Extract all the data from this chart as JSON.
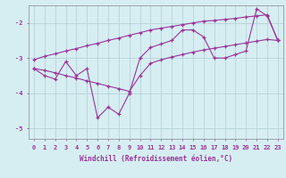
{
  "xlabel": "Windchill (Refroidissement éolien,°C)",
  "x_hours": [
    0,
    1,
    2,
    3,
    4,
    5,
    6,
    7,
    8,
    9,
    10,
    11,
    12,
    13,
    14,
    15,
    16,
    17,
    18,
    19,
    20,
    21,
    22,
    23
  ],
  "main_line": [
    -3.3,
    -3.5,
    -3.6,
    -3.1,
    -3.5,
    -3.3,
    -4.7,
    -4.4,
    -4.6,
    -4.0,
    -3.0,
    -2.7,
    -2.6,
    -2.5,
    -2.2,
    -2.2,
    -2.4,
    -3.0,
    -3.0,
    -2.9,
    -2.8,
    -1.6,
    -1.8,
    -2.5
  ],
  "upper_line": [
    -3.05,
    -2.95,
    -2.88,
    -2.8,
    -2.73,
    -2.65,
    -2.58,
    -2.5,
    -2.43,
    -2.35,
    -2.28,
    -2.2,
    -2.15,
    -2.1,
    -2.05,
    -2.0,
    -1.95,
    -1.93,
    -1.9,
    -1.87,
    -1.83,
    -1.8,
    -1.77,
    -2.5
  ],
  "lower_line": [
    -3.3,
    -3.35,
    -3.42,
    -3.5,
    -3.57,
    -3.65,
    -3.72,
    -3.8,
    -3.87,
    -3.95,
    -3.5,
    -3.15,
    -3.05,
    -2.97,
    -2.9,
    -2.83,
    -2.77,
    -2.72,
    -2.67,
    -2.62,
    -2.57,
    -2.52,
    -2.47,
    -2.5
  ],
  "line_color": "#993399",
  "bg_color": "#d6eef2",
  "grid_color": "#b0cdd4",
  "ylim": [
    -5.3,
    -1.5
  ],
  "yticks": [
    -5,
    -4,
    -3,
    -2
  ],
  "xlim": [
    -0.5,
    23.5
  ],
  "figwidth": 3.2,
  "figheight": 2.0,
  "dpi": 100
}
